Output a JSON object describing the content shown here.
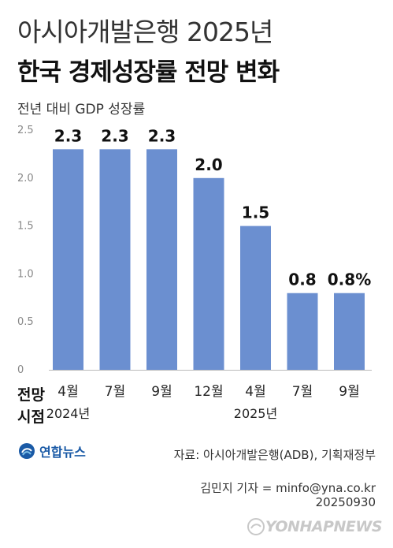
{
  "title_line1": "아시아개발은행 2025년",
  "title_line2": "한국 경제성장률 전망 변화",
  "subtitle": "전년 대비 GDP 성장률",
  "x_axis_title": [
    "전망",
    "시점"
  ],
  "source": "자료: 아시아개발은행(ADB), 기획재정부",
  "credit_reporter": "김민지 기자 = minfo@yna.co.kr",
  "credit_date": "20250930",
  "logo_text": "연합뉴스",
  "watermark_text": "YONHAPNEWS",
  "colors": {
    "bar": "#6b8fd0",
    "axis": "#bbbbbb"
  },
  "chart_data": {
    "type": "bar",
    "title": "",
    "ylabel": "",
    "xlabel": "",
    "ylim": [
      0,
      2.5
    ],
    "yticks": [
      "0",
      "0.5",
      "1.0",
      "1.5",
      "2.0",
      "2.5"
    ],
    "categories": [
      "4월",
      "7월",
      "9월",
      "12월",
      "4월",
      "7월",
      "9월"
    ],
    "values": [
      2.3,
      2.3,
      2.3,
      2.0,
      1.5,
      0.8,
      0.8
    ],
    "data_labels": [
      "2.3",
      "2.3",
      "2.3",
      "2.0",
      "1.5",
      "0.8",
      "0.8%"
    ],
    "year_labels": [
      {
        "label": "2024년",
        "under_category": 0
      },
      {
        "label": "2025년",
        "under_category": 4
      }
    ],
    "grid": false
  }
}
